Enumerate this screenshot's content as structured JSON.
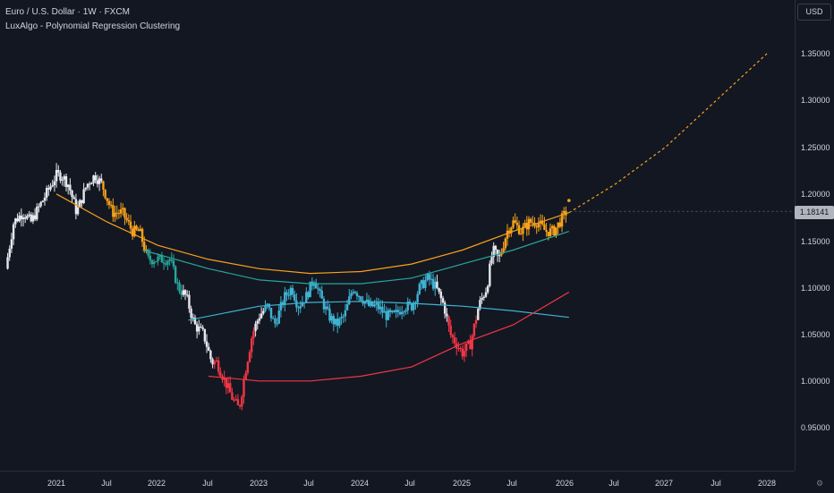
{
  "header": {
    "symbol_line": "Euro / U.S. Dollar · 1W · FXCM",
    "indicator_line": "LuxAlgo - Polynomial Regression Clustering"
  },
  "currency_label": "USD",
  "last_price": "1.18141",
  "colors": {
    "background": "#131722",
    "orange": "#f7a21b",
    "teal": "#26a69a",
    "cyan": "#3fb3d1",
    "red": "#f23645",
    "white": "#e6e8ee"
  },
  "chart_data": {
    "type": "candlestick",
    "title": "Euro / U.S. Dollar · 1W · FXCM",
    "y_axis": {
      "ticks": [
        "1.35000",
        "1.30000",
        "1.25000",
        "1.20000",
        "1.15000",
        "1.10000",
        "1.05000",
        "1.00000",
        "0.95000"
      ],
      "range": [
        0.9,
        1.4
      ]
    },
    "x_axis": {
      "ticks": [
        "2021",
        "Jul",
        "2022",
        "Jul",
        "2023",
        "Jul",
        "2024",
        "Jul",
        "2025",
        "Jul",
        "2026",
        "Jul",
        "2027",
        "Jul",
        "2028"
      ]
    },
    "price_path": [
      [
        2020.5,
        1.12
      ],
      [
        2020.58,
        1.17
      ],
      [
        2020.67,
        1.18
      ],
      [
        2020.75,
        1.17
      ],
      [
        2020.85,
        1.19
      ],
      [
        2021.0,
        1.22
      ],
      [
        2021.05,
        1.22
      ],
      [
        2021.12,
        1.21
      ],
      [
        2021.2,
        1.18
      ],
      [
        2021.3,
        1.21
      ],
      [
        2021.38,
        1.22
      ],
      [
        2021.45,
        1.21
      ],
      [
        2021.55,
        1.18
      ],
      [
        2021.65,
        1.18
      ],
      [
        2021.75,
        1.16
      ],
      [
        2021.82,
        1.16
      ],
      [
        2021.9,
        1.13
      ],
      [
        2021.97,
        1.13
      ],
      [
        2022.05,
        1.13
      ],
      [
        2022.12,
        1.13
      ],
      [
        2022.2,
        1.1
      ],
      [
        2022.28,
        1.09
      ],
      [
        2022.36,
        1.06
      ],
      [
        2022.45,
        1.05
      ],
      [
        2022.53,
        1.02
      ],
      [
        2022.58,
        1.02
      ],
      [
        2022.66,
        1.0
      ],
      [
        2022.74,
        0.98
      ],
      [
        2022.8,
        0.97
      ],
      [
        2022.86,
        1.01
      ],
      [
        2022.93,
        1.05
      ],
      [
        2023.0,
        1.07
      ],
      [
        2023.08,
        1.08
      ],
      [
        2023.15,
        1.06
      ],
      [
        2023.25,
        1.09
      ],
      [
        2023.32,
        1.1
      ],
      [
        2023.38,
        1.08
      ],
      [
        2023.46,
        1.09
      ],
      [
        2023.54,
        1.11
      ],
      [
        2023.6,
        1.09
      ],
      [
        2023.68,
        1.07
      ],
      [
        2023.76,
        1.06
      ],
      [
        2023.84,
        1.07
      ],
      [
        2023.92,
        1.1
      ],
      [
        2024.0,
        1.09
      ],
      [
        2024.08,
        1.08
      ],
      [
        2024.16,
        1.08
      ],
      [
        2024.25,
        1.07
      ],
      [
        2024.33,
        1.07
      ],
      [
        2024.42,
        1.08
      ],
      [
        2024.5,
        1.08
      ],
      [
        2024.58,
        1.1
      ],
      [
        2024.66,
        1.11
      ],
      [
        2024.74,
        1.1
      ],
      [
        2024.82,
        1.08
      ],
      [
        2024.88,
        1.05
      ],
      [
        2024.94,
        1.04
      ],
      [
        2025.0,
        1.03
      ],
      [
        2025.08,
        1.04
      ],
      [
        2025.16,
        1.08
      ],
      [
        2025.24,
        1.1
      ],
      [
        2025.3,
        1.14
      ],
      [
        2025.36,
        1.13
      ],
      [
        2025.44,
        1.16
      ],
      [
        2025.5,
        1.17
      ],
      [
        2025.58,
        1.16
      ],
      [
        2025.66,
        1.17
      ],
      [
        2025.74,
        1.17
      ],
      [
        2025.82,
        1.16
      ],
      [
        2025.9,
        1.16
      ],
      [
        2025.96,
        1.17
      ],
      [
        2026.02,
        1.18
      ]
    ],
    "curves": [
      {
        "name": "orange",
        "points": [
          [
            2021.0,
            1.2
          ],
          [
            2021.5,
            1.17
          ],
          [
            2022.0,
            1.145
          ],
          [
            2022.5,
            1.13
          ],
          [
            2023.0,
            1.12
          ],
          [
            2023.5,
            1.115
          ],
          [
            2024.0,
            1.117
          ],
          [
            2024.5,
            1.125
          ],
          [
            2025.0,
            1.14
          ],
          [
            2025.5,
            1.16
          ],
          [
            2026.05,
            1.18
          ]
        ]
      },
      {
        "name": "orange-projection",
        "points": [
          [
            2026.05,
            1.18
          ],
          [
            2026.5,
            1.21
          ],
          [
            2027.0,
            1.25
          ],
          [
            2027.5,
            1.3
          ],
          [
            2028.0,
            1.35
          ]
        ]
      },
      {
        "name": "teal",
        "points": [
          [
            2021.85,
            1.14
          ],
          [
            2022.5,
            1.12
          ],
          [
            2023.0,
            1.108
          ],
          [
            2023.5,
            1.104
          ],
          [
            2024.0,
            1.104
          ],
          [
            2024.5,
            1.11
          ],
          [
            2025.0,
            1.125
          ],
          [
            2025.5,
            1.14
          ],
          [
            2026.05,
            1.16
          ]
        ]
      },
      {
        "name": "cyan",
        "points": [
          [
            2022.3,
            1.065
          ],
          [
            2023.0,
            1.08
          ],
          [
            2023.5,
            1.084
          ],
          [
            2024.0,
            1.085
          ],
          [
            2024.5,
            1.083
          ],
          [
            2025.0,
            1.08
          ],
          [
            2025.5,
            1.075
          ],
          [
            2026.05,
            1.068
          ]
        ]
      },
      {
        "name": "red",
        "points": [
          [
            2022.5,
            1.005
          ],
          [
            2023.0,
            1.0
          ],
          [
            2023.5,
            1.0
          ],
          [
            2024.0,
            1.005
          ],
          [
            2024.5,
            1.015
          ],
          [
            2025.0,
            1.04
          ],
          [
            2025.5,
            1.06
          ],
          [
            2026.05,
            1.095
          ]
        ]
      }
    ]
  }
}
